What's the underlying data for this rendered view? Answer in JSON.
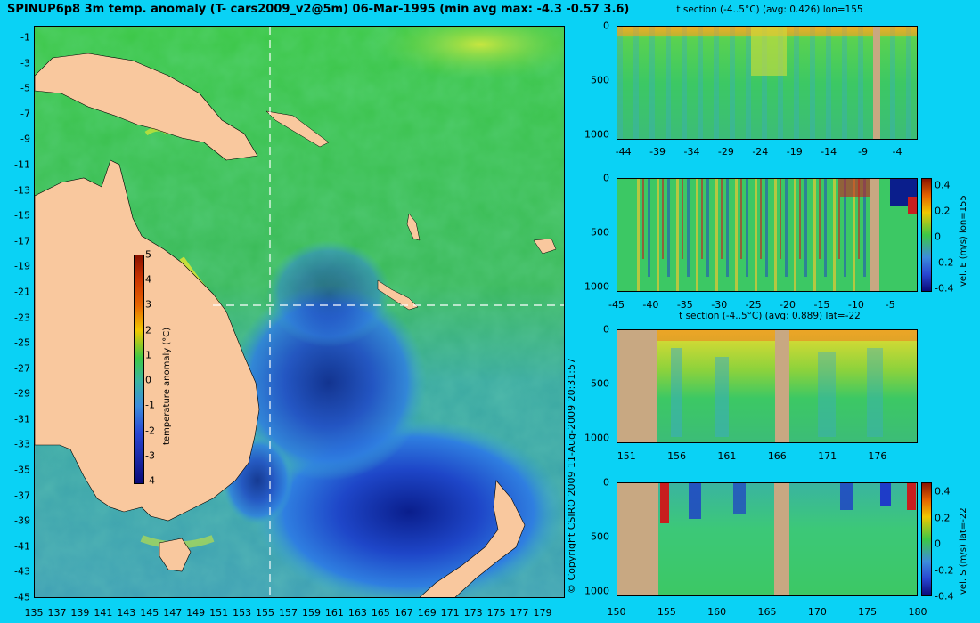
{
  "main_title": "SPINUP6p8 3m temp. anomaly (T- cars2009_v2@5m) 06-Mar-1995 (min avg max: -4.3 -0.57 3.6)",
  "copyright": "© Copyright CSIRO 2009    11-Aug-2009 20:31:57",
  "colors": {
    "background": "#0ad2f5",
    "land": "#f9c89e",
    "land_section": "#c8a882"
  },
  "chart_data": [
    {
      "type": "heatmap",
      "title": "SPINUP6p8 3m temp. anomaly (T- cars2009_v2@5m) 06-Mar-1995 (min avg max: -4.3 -0.57 3.6)",
      "x_ticks": [
        "135",
        "137",
        "139",
        "141",
        "143",
        "145",
        "147",
        "149",
        "151",
        "153",
        "155",
        "157",
        "159",
        "161",
        "163",
        "165",
        "167",
        "169",
        "171",
        "173",
        "175",
        "177",
        "179"
      ],
      "y_ticks": [
        "-1",
        "-3",
        "-5",
        "-7",
        "-9",
        "-11",
        "-13",
        "-15",
        "-17",
        "-19",
        "-21",
        "-23",
        "-25",
        "-27",
        "-29",
        "-31",
        "-33",
        "-35",
        "-37",
        "-39",
        "-41",
        "-43",
        "-45"
      ],
      "xlim": [
        135,
        180
      ],
      "ylim": [
        -45,
        0
      ],
      "stats": {
        "min": -4.3,
        "avg": -0.57,
        "max": 3.6
      },
      "crosshair": {
        "lon": 155,
        "lat": -22
      },
      "colorbar": {
        "label": "temperature anomaly (°C)",
        "ticks": [
          "5",
          "4",
          "3",
          "2",
          "1",
          "0",
          "-1",
          "-2",
          "-3",
          "-4"
        ],
        "range": [
          -4,
          5
        ]
      }
    },
    {
      "type": "heatmap",
      "title": "t section (-4..5°C) (avg: 0.426) lon=155",
      "x_ticks": [
        "-44",
        "-39",
        "-34",
        "-29",
        "-24",
        "-19",
        "-14",
        "-9",
        "-4"
      ],
      "y_ticks": [
        "0",
        "500",
        "1000"
      ],
      "xlim": [
        -45,
        -1
      ],
      "ylim": [
        1050,
        0
      ]
    },
    {
      "type": "heatmap",
      "title": "",
      "x_ticks": [
        "-45",
        "-40",
        "-35",
        "-30",
        "-25",
        "-20",
        "-15",
        "-10",
        "-5"
      ],
      "y_ticks": [
        "0",
        "500",
        "1000"
      ],
      "xlim": [
        -45,
        -1
      ],
      "ylim": [
        1050,
        0
      ],
      "colorbar": {
        "label": "vel. E (m/s) lon=155",
        "ticks": [
          "0.4",
          "0.2",
          "0",
          "-0.2",
          "-0.4"
        ],
        "range": [
          -0.45,
          0.45
        ]
      }
    },
    {
      "type": "heatmap",
      "title": "t section (-4..5°C) (avg: 0.889) lat=-22",
      "x_ticks": [
        "151",
        "156",
        "161",
        "166",
        "171",
        "176"
      ],
      "y_ticks": [
        "0",
        "500",
        "1000"
      ],
      "xlim": [
        150,
        180
      ],
      "ylim": [
        1050,
        0
      ]
    },
    {
      "type": "heatmap",
      "title": "",
      "x_ticks": [
        "150",
        "155",
        "160",
        "165",
        "170",
        "175",
        "180"
      ],
      "y_ticks": [
        "0",
        "500",
        "1000"
      ],
      "xlim": [
        150,
        180
      ],
      "ylim": [
        1050,
        0
      ],
      "colorbar": {
        "label": "vel. S (m/s) lat=-22",
        "ticks": [
          "0.4",
          "0.2",
          "0",
          "-0.2",
          "-0.4"
        ],
        "range": [
          -0.45,
          0.45
        ]
      }
    }
  ]
}
